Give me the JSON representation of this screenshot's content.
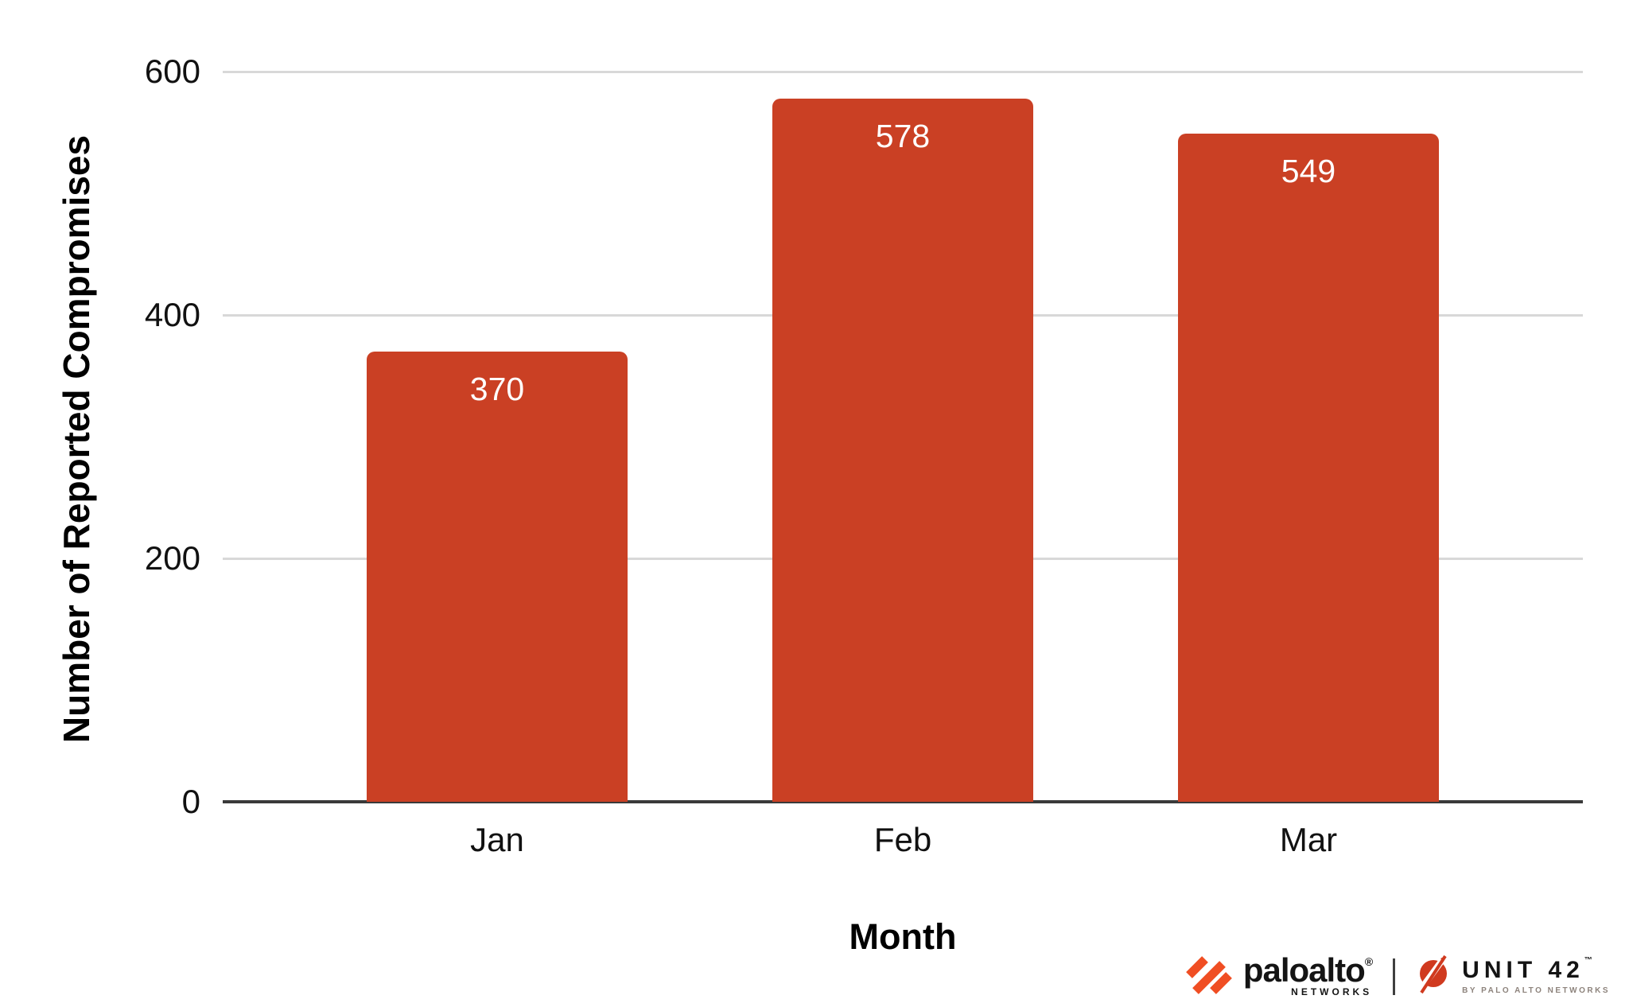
{
  "chart_data": {
    "type": "bar",
    "categories": [
      "Jan",
      "Feb",
      "Mar"
    ],
    "values": [
      370,
      578,
      549
    ],
    "title": "",
    "xlabel": "Month",
    "ylabel": "Number of Reported Compromises",
    "ylim": [
      0,
      600
    ],
    "yticks": [
      0,
      200,
      400,
      600
    ],
    "grid": true,
    "legend_position": "none",
    "bar_color": "#CA4024",
    "value_label_color": "#FFFFFF",
    "gridline_color": "#D8D8D8",
    "axis_line_color": "#3A3A3A"
  },
  "branding": {
    "paloalto": {
      "wordmark": "paloalto",
      "reg_mark": "®",
      "sub_label": "NETWORKS",
      "brand_orange": "#F04E23"
    },
    "unit42": {
      "wordmark": "UNIT 42",
      "tm_mark": "™",
      "sub_label": "BY PALO ALTO NETWORKS",
      "brand_red": "#D03A1F"
    }
  }
}
